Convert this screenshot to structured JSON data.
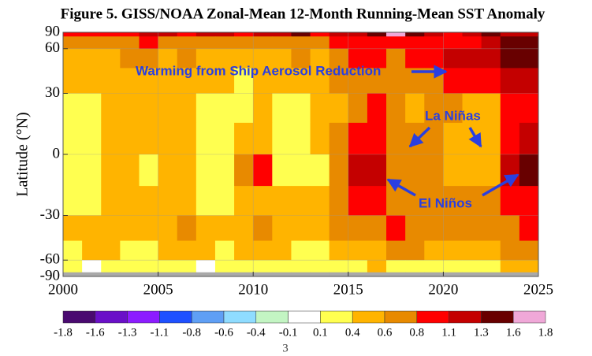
{
  "chart_data": {
    "type": "heatmap",
    "title": "Figure 5. GISS/NOAA Zonal-Mean 12-Month Running-Mean SST Anomaly",
    "ylabel": "Latitude (°N)",
    "yscale": "sine",
    "xlim": [
      2000,
      2025
    ],
    "xticks": [
      2000,
      2005,
      2010,
      2015,
      2020,
      2025
    ],
    "ylim": [
      -90,
      90
    ],
    "yticks": [
      90,
      60,
      30,
      0,
      -30,
      -60,
      -90
    ],
    "x": [
      2000.5,
      2001.5,
      2002.5,
      2003.5,
      2004.5,
      2005.5,
      2006.5,
      2007.5,
      2008.5,
      2009.5,
      2010.5,
      2011.5,
      2012.5,
      2013.5,
      2014.5,
      2015.5,
      2016.5,
      2017.5,
      2018.5,
      2019.5,
      2020.5,
      2021.5,
      2022.5,
      2023.5,
      2024.5
    ],
    "y": [
      82.5,
      67.5,
      52.5,
      37.5,
      22.5,
      7.5,
      -7.5,
      -22.5,
      -37.5,
      -52.5,
      -67.5,
      -82.5
    ],
    "z": [
      [
        0.9,
        1.0,
        0.9,
        1.0,
        1.2,
        1.1,
        1.0,
        1.2,
        1.1,
        1.0,
        1.1,
        1.2,
        1.3,
        1.0,
        1.1,
        1.2,
        1.4,
        1.7,
        1.3,
        1.2,
        1.0,
        1.2,
        1.3,
        1.1,
        1.2
      ],
      [
        0.6,
        0.7,
        0.6,
        0.7,
        0.8,
        0.7,
        0.6,
        0.7,
        0.7,
        0.6,
        0.7,
        0.7,
        0.6,
        0.7,
        0.9,
        0.9,
        0.9,
        0.8,
        0.8,
        0.9,
        1.0,
        1.0,
        1.2,
        1.3,
        1.4
      ],
      [
        0.5,
        0.5,
        0.5,
        0.6,
        0.6,
        0.5,
        0.6,
        0.5,
        0.5,
        0.4,
        0.5,
        0.5,
        0.6,
        0.5,
        0.6,
        0.8,
        0.8,
        0.7,
        0.8,
        0.9,
        1.1,
        1.1,
        1.2,
        1.4,
        1.5
      ],
      [
        0.4,
        0.5,
        0.5,
        0.5,
        0.5,
        0.4,
        0.5,
        0.5,
        0.4,
        0.3,
        0.4,
        0.4,
        0.4,
        0.5,
        0.6,
        0.7,
        0.7,
        0.6,
        0.6,
        0.7,
        0.8,
        0.8,
        0.9,
        1.1,
        1.2
      ],
      [
        0.3,
        0.3,
        0.4,
        0.4,
        0.5,
        0.4,
        0.4,
        0.3,
        0.2,
        0.3,
        0.4,
        0.3,
        0.3,
        0.4,
        0.5,
        0.7,
        0.8,
        0.6,
        0.5,
        0.6,
        0.6,
        0.5,
        0.5,
        0.8,
        1.0
      ],
      [
        0.2,
        0.3,
        0.5,
        0.5,
        0.4,
        0.5,
        0.4,
        0.2,
        0.1,
        0.5,
        0.5,
        0.2,
        0.3,
        0.4,
        0.7,
        1.0,
        0.9,
        0.6,
        0.6,
        0.7,
        0.5,
        0.4,
        0.4,
        1.0,
        1.2
      ],
      [
        0.2,
        0.2,
        0.4,
        0.4,
        0.3,
        0.4,
        0.4,
        0.1,
        0.1,
        0.6,
        0.9,
        0.2,
        0.3,
        0.3,
        0.6,
        1.2,
        1.1,
        0.7,
        0.6,
        0.6,
        0.5,
        0.4,
        0.5,
        1.1,
        1.4
      ],
      [
        0.3,
        0.3,
        0.4,
        0.4,
        0.4,
        0.5,
        0.5,
        0.3,
        0.3,
        0.5,
        0.5,
        0.4,
        0.4,
        0.4,
        0.6,
        0.8,
        0.8,
        0.7,
        0.6,
        0.6,
        0.6,
        0.6,
        0.6,
        0.8,
        0.9
      ],
      [
        0.4,
        0.4,
        0.5,
        0.5,
        0.5,
        0.5,
        0.6,
        0.5,
        0.4,
        0.5,
        0.6,
        0.5,
        0.4,
        0.5,
        0.6,
        0.7,
        0.7,
        0.8,
        0.7,
        0.6,
        0.7,
        0.7,
        0.7,
        0.7,
        0.9
      ],
      [
        0.3,
        0.4,
        0.4,
        0.3,
        0.3,
        0.4,
        0.4,
        0.4,
        0.3,
        0.4,
        0.4,
        0.4,
        0.3,
        0.3,
        0.4,
        0.5,
        0.5,
        0.6,
        0.6,
        0.5,
        0.5,
        0.5,
        0.5,
        0.6,
        0.7
      ],
      [
        0.2,
        0.0,
        0.1,
        0.2,
        0.3,
        0.2,
        0.3,
        0.0,
        0.2,
        0.3,
        0.2,
        0.3,
        0.2,
        0.1,
        0.2,
        0.3,
        0.4,
        0.3,
        0.2,
        0.3,
        0.2,
        0.3,
        0.3,
        0.4,
        0.4
      ],
      [
        null,
        null,
        null,
        null,
        null,
        null,
        null,
        null,
        null,
        null,
        null,
        null,
        null,
        null,
        null,
        null,
        null,
        null,
        null,
        null,
        null,
        null,
        null,
        null,
        null
      ]
    ],
    "missing_color": "#a9a9a9",
    "colorbar": {
      "levels": [
        -1.8,
        -1.6,
        -1.3,
        -1.1,
        -0.8,
        -0.6,
        -0.4,
        -0.1,
        0.1,
        0.4,
        0.6,
        0.8,
        1.1,
        1.3,
        1.6,
        1.8
      ],
      "colors": [
        "#4a0a70",
        "#6a10c8",
        "#8c1cff",
        "#1e50ff",
        "#5f9ff5",
        "#8fdcff",
        "#c3f5c3",
        "#ffffff",
        "#ffff50",
        "#ffb400",
        "#e88a00",
        "#ff0000",
        "#c40000",
        "#680000",
        "#f0a8d8"
      ]
    },
    "annotations": [
      "Warming from Ship Aerosol Reduction",
      "La Niñas",
      "El Niños"
    ]
  },
  "page_number": 3
}
